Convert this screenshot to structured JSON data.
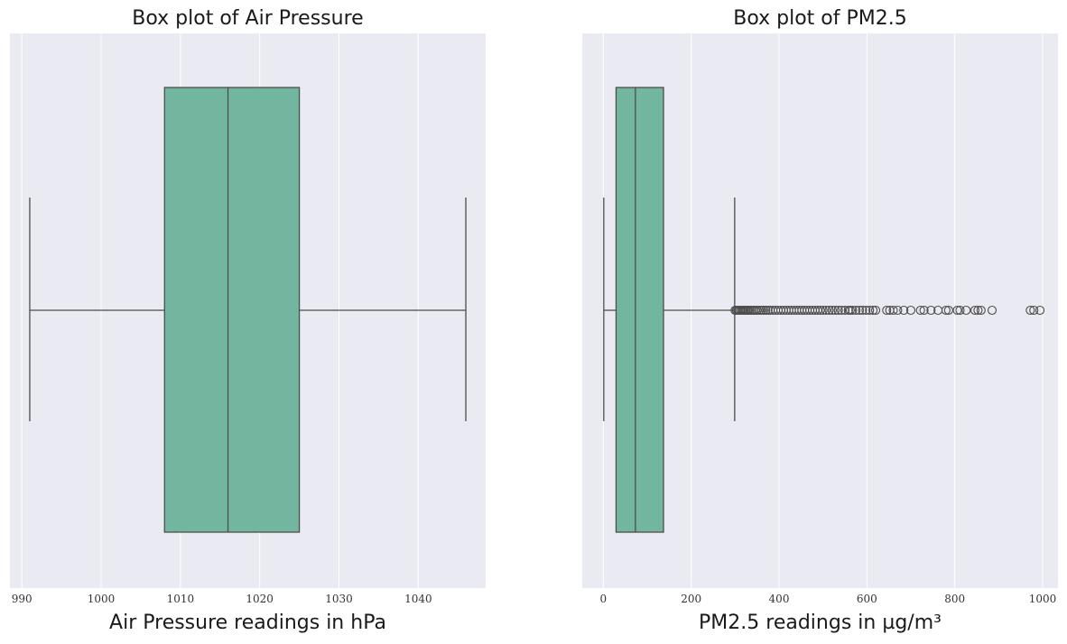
{
  "chart_data": [
    {
      "type": "box",
      "title": "Box plot of Air Pressure",
      "xlabel": "Air Pressure readings in hPa",
      "xlim": [
        988.5,
        1048.5
      ],
      "ticks": [
        990,
        1000,
        1010,
        1020,
        1030,
        1040
      ],
      "grid": true,
      "box": {
        "whisker_low": 991,
        "q1": 1008,
        "median": 1016,
        "q3": 1025,
        "whisker_high": 1046
      },
      "outliers": [],
      "colors": {
        "box": "#73b6a0",
        "line": "#4d4d4d",
        "background": "#eaeaf2"
      }
    },
    {
      "type": "box",
      "title": "Box plot of PM2.5",
      "xlabel": "PM2.5 readings in µg/m³",
      "xlim": [
        -48,
        1035
      ],
      "ticks": [
        0,
        200,
        400,
        600,
        800,
        1000
      ],
      "grid": true,
      "box": {
        "whisker_low": 1,
        "q1": 29,
        "median": 73,
        "q3": 137,
        "whisker_high": 299
      },
      "outliers": [
        300,
        303,
        306,
        309,
        312,
        315,
        318,
        321,
        324,
        327,
        330,
        334,
        338,
        342,
        346,
        350,
        355,
        360,
        365,
        370,
        375,
        380,
        386,
        392,
        398,
        404,
        410,
        416,
        422,
        428,
        434,
        440,
        446,
        452,
        458,
        464,
        470,
        476,
        482,
        488,
        494,
        500,
        507,
        514,
        521,
        528,
        535,
        542,
        550,
        558,
        562,
        567,
        575,
        583,
        590,
        598,
        606,
        614,
        620,
        645,
        652,
        660,
        670,
        684,
        700,
        722,
        730,
        746,
        762,
        780,
        786,
        806,
        812,
        826,
        846,
        853,
        860,
        885,
        972,
        980,
        994
      ],
      "colors": {
        "box": "#73b6a0",
        "line": "#4d4d4d",
        "background": "#eaeaf2"
      }
    }
  ]
}
